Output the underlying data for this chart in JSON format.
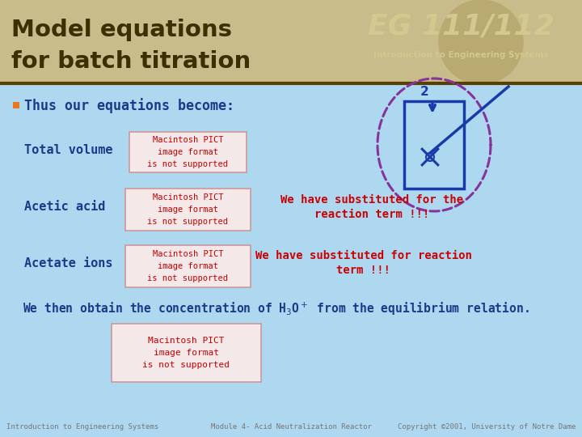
{
  "title_line1": "Model equations",
  "title_line2": "for batch titration",
  "title_bg_color": "#c8bc8a",
  "title_text_color": "#3d3000",
  "body_bg_color": "#add8f0",
  "bullet_color": "#e87820",
  "bullet_text": "Thus our equations become:",
  "bullet_text_color": "#1a3a8a",
  "label_color": "#1a3a8a",
  "label_total_volume": "Total volume",
  "label_acetic_acid": "Acetic acid",
  "label_acetate_ions": "Acetate ions",
  "pict_box_color": "#f5e8e8",
  "pict_border_color": "#cc9999",
  "pict_text_color": "#cc0000",
  "pict_text": "Macintosh PICT\nimage format\nis not supported",
  "red_note1_line1": "We have substituted for the",
  "red_note1_line2": "reaction term !!!",
  "red_note2_line1": "We have substituted for reaction",
  "red_note2_line2": "term !!!",
  "red_note_color": "#cc0000",
  "concentration_text_color": "#1a3a8a",
  "header_separator_color": "#5a4000",
  "footer_text_color": "#777777",
  "footer_left": "Introduction to Engineering Systems",
  "footer_mid": "Module 4- Acid Neutralization Reactor",
  "footer_right": "Copyright ©2001, University of Notre Dame",
  "diagram_dashed_color": "#883399",
  "diagram_box_color": "#1a3aaa",
  "diagram_arrow_color": "#1a3aaa",
  "diagram_scissors_color": "#1a3aaa",
  "diagram_line_color": "#1a3aaa",
  "diagram_num_color": "#1a3aaa",
  "header_globe_color": "#b8aa70",
  "eg_text_color": "#d4c890",
  "eg_sub_color": "#d4c890"
}
